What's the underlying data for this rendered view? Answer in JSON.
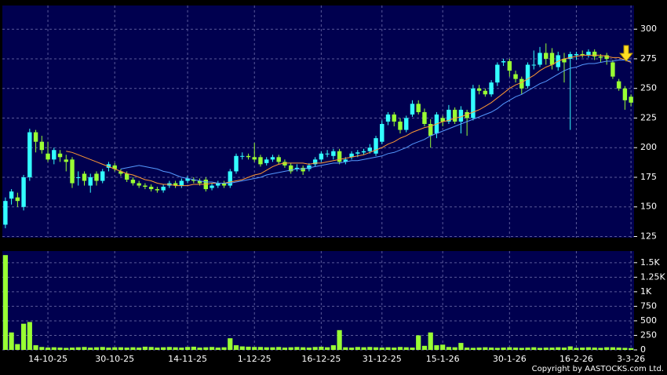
{
  "chart_data": {
    "type": "candlestick",
    "categories": [
      null,
      null,
      null,
      null,
      null,
      null,
      null,
      "14-10-25",
      null,
      null,
      null,
      null,
      null,
      null,
      null,
      null,
      null,
      null,
      "30-10-25",
      null,
      null,
      null,
      null,
      null,
      null,
      null,
      null,
      null,
      null,
      null,
      "14-11-25",
      null,
      null,
      null,
      null,
      null,
      null,
      null,
      null,
      null,
      null,
      "1-12-25",
      null,
      null,
      null,
      null,
      null,
      null,
      null,
      null,
      null,
      null,
      "16-12-25",
      null,
      null,
      null,
      null,
      null,
      null,
      null,
      null,
      null,
      "31-12-25",
      null,
      null,
      null,
      null,
      null,
      null,
      null,
      null,
      null,
      "15-1-26",
      null,
      null,
      null,
      null,
      null,
      null,
      null,
      null,
      null,
      null,
      "30-1-26",
      null,
      null,
      null,
      null,
      null,
      null,
      null,
      null,
      null,
      null,
      "16-2-26",
      null,
      null,
      null,
      null,
      null,
      null,
      null,
      null,
      "3-3-26"
    ],
    "open": [
      135,
      157,
      158,
      150,
      175,
      213,
      205,
      195,
      190,
      195,
      190,
      190,
      175,
      178,
      168,
      178,
      172,
      183,
      185,
      180,
      178,
      173,
      170,
      168,
      167,
      165,
      164,
      168,
      170,
      168,
      172,
      173,
      172,
      173,
      166,
      168,
      170,
      168,
      180,
      193,
      193,
      192,
      192,
      187,
      190,
      192,
      188,
      185,
      182,
      183,
      182,
      186,
      190,
      195,
      193,
      197,
      188,
      192,
      195,
      196,
      197,
      195,
      205,
      222,
      228,
      222,
      215,
      228,
      237,
      230,
      220,
      212,
      225,
      222,
      232,
      222,
      230,
      225,
      250,
      248,
      245,
      255,
      272,
      273,
      262,
      258,
      252,
      270,
      270,
      280,
      280,
      268,
      275,
      275,
      278,
      279,
      278,
      281,
      277,
      278,
      272,
      256,
      250,
      243
    ],
    "high": [
      158,
      165,
      162,
      177,
      216,
      215,
      210,
      205,
      200,
      198,
      194,
      192,
      180,
      180,
      178,
      180,
      182,
      188,
      187,
      182,
      180,
      175,
      172,
      170,
      169,
      167,
      169,
      172,
      172,
      174,
      176,
      175,
      174,
      175,
      170,
      172,
      172,
      182,
      195,
      196,
      195,
      204,
      194,
      192,
      194,
      194,
      190,
      187,
      186,
      185,
      187,
      192,
      197,
      198,
      199,
      199,
      192,
      197,
      198,
      199,
      203,
      210,
      223,
      230,
      230,
      225,
      227,
      240,
      240,
      233,
      224,
      230,
      227,
      236,
      234,
      235,
      232,
      253,
      253,
      250,
      257,
      272,
      275,
      275,
      265,
      260,
      272,
      282,
      285,
      288,
      284,
      281,
      280,
      281,
      281,
      282,
      283,
      283,
      279,
      280,
      274,
      258,
      252,
      245
    ],
    "low": [
      132,
      152,
      150,
      147,
      172,
      196,
      195,
      188,
      186,
      188,
      180,
      166,
      168,
      168,
      162,
      168,
      170,
      180,
      180,
      176,
      171,
      168,
      166,
      165,
      163,
      162,
      162,
      166,
      166,
      166,
      170,
      170,
      168,
      163,
      164,
      166,
      166,
      166,
      178,
      190,
      190,
      188,
      184,
      185,
      188,
      186,
      183,
      178,
      180,
      177,
      180,
      184,
      188,
      192,
      190,
      186,
      186,
      190,
      192,
      194,
      195,
      193,
      203,
      219,
      218,
      212,
      213,
      226,
      228,
      218,
      200,
      208,
      218,
      220,
      220,
      212,
      210,
      223,
      245,
      243,
      243,
      252,
      269,
      260,
      255,
      245,
      250,
      266,
      268,
      270,
      266,
      265,
      255,
      215,
      274,
      276,
      276,
      274,
      272,
      270,
      258,
      248,
      232,
      235
    ],
    "close": [
      155,
      163,
      155,
      175,
      213,
      205,
      198,
      190,
      198,
      192,
      188,
      170,
      175,
      172,
      175,
      172,
      180,
      186,
      182,
      178,
      173,
      170,
      168,
      167,
      165,
      164,
      167,
      170,
      168,
      172,
      174,
      172,
      170,
      165,
      168,
      170,
      168,
      180,
      193,
      193,
      192,
      190,
      186,
      190,
      192,
      188,
      185,
      180,
      183,
      180,
      185,
      190,
      195,
      195,
      197,
      188,
      190,
      195,
      196,
      197,
      200,
      208,
      220,
      228,
      222,
      215,
      225,
      237,
      230,
      220,
      210,
      228,
      222,
      232,
      222,
      232,
      225,
      250,
      248,
      245,
      255,
      270,
      273,
      265,
      258,
      250,
      270,
      270,
      280,
      275,
      270,
      278,
      272,
      279,
      279,
      278,
      281,
      277,
      276,
      275,
      260,
      250,
      240,
      238
    ],
    "up_color": "#33ffff",
    "down_color": "#99ff33",
    "ylim": [
      124,
      320
    ],
    "yticks": [
      125,
      150,
      175,
      200,
      225,
      250,
      275,
      300
    ],
    "grid": true,
    "moving_averages": [
      {
        "color": "#ff9933",
        "values": [
          null,
          null,
          null,
          null,
          null,
          null,
          null,
          null,
          null,
          null,
          197,
          196,
          194,
          192,
          190,
          188,
          186,
          184,
          182,
          180,
          178,
          177,
          175,
          173,
          172,
          170,
          169,
          169,
          168,
          168,
          168,
          169,
          169,
          169,
          170,
          170,
          170,
          171,
          172,
          173,
          175,
          177,
          178,
          181,
          184,
          186,
          187,
          187,
          187,
          187,
          186,
          187,
          187,
          188,
          189,
          190,
          191,
          192,
          193,
          194,
          196,
          198,
          200,
          203,
          205,
          208,
          210,
          213,
          215,
          217,
          218,
          220,
          222,
          223,
          225,
          226,
          228,
          230,
          232,
          235,
          238,
          242,
          246,
          250,
          253,
          255,
          258,
          261,
          265,
          268,
          270,
          273,
          275,
          276,
          277,
          278,
          278,
          278,
          278,
          277,
          276,
          276,
          274,
          272
        ]
      },
      {
        "color": "#5599ff",
        "values": [
          null,
          null,
          null,
          null,
          null,
          null,
          null,
          null,
          null,
          null,
          null,
          null,
          null,
          null,
          null,
          null,
          null,
          null,
          null,
          182,
          183,
          184,
          185,
          184,
          183,
          182,
          180,
          179,
          177,
          175,
          174,
          173,
          172,
          171,
          171,
          170,
          170,
          170,
          171,
          172,
          173,
          174,
          175,
          177,
          178,
          179,
          180,
          181,
          182,
          182,
          183,
          184,
          185,
          186,
          187,
          187,
          188,
          189,
          189,
          190,
          191,
          192,
          193,
          195,
          196,
          198,
          200,
          203,
          205,
          207,
          210,
          212,
          214,
          216,
          218,
          220,
          222,
          224,
          226,
          228,
          230,
          233,
          237,
          240,
          243,
          245,
          248,
          251,
          254,
          256,
          259,
          262,
          265,
          267,
          268,
          270,
          271,
          271,
          272,
          273,
          273,
          274,
          274,
          273
        ]
      }
    ],
    "volume": {
      "color": "#99ff33",
      "values": [
        1630,
        300,
        100,
        450,
        480,
        80,
        50,
        40,
        45,
        40,
        35,
        40,
        45,
        50,
        40,
        45,
        50,
        40,
        45,
        45,
        40,
        45,
        40,
        55,
        50,
        40,
        45,
        50,
        45,
        40,
        50,
        55,
        40,
        45,
        50,
        40,
        45,
        200,
        80,
        60,
        55,
        50,
        50,
        45,
        45,
        50,
        40,
        45,
        50,
        45,
        40,
        50,
        55,
        45,
        80,
        340,
        45,
        40,
        50,
        45,
        50,
        45,
        40,
        45,
        40,
        50,
        45,
        40,
        250,
        70,
        300,
        80,
        90,
        50,
        45,
        120,
        40,
        35,
        40,
        45,
        40,
        35,
        40,
        45,
        40,
        35,
        40,
        45,
        35,
        40,
        40,
        45,
        40,
        60,
        35,
        40,
        45,
        40,
        35,
        45,
        45,
        40,
        35,
        30
      ],
      "ylim": [
        0,
        1700
      ],
      "yticks": [
        0,
        250,
        500,
        750,
        {
          "value": 1000,
          "label": "1K"
        },
        {
          "value": 1250,
          "label": "1.25K"
        },
        {
          "value": 1500,
          "label": "1.5K"
        }
      ]
    },
    "footer": "Copyright by AASTOCKS.com Ltd."
  }
}
